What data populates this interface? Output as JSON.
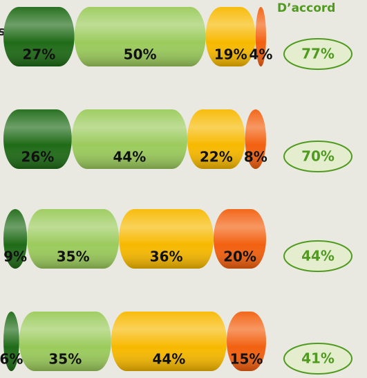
{
  "chart_data": {
    "type": "bar",
    "orientation": "horizontal",
    "stacked": true,
    "categories": [
      "s",
      null,
      null,
      null
    ],
    "series": [
      {
        "color": "#1f6b17",
        "values": [
          27,
          26,
          9,
          6
        ],
        "value_labels": [
          "27%",
          "26%",
          "9%",
          "6%"
        ]
      },
      {
        "color": "#9bcb5c",
        "values": [
          50,
          44,
          35,
          35
        ],
        "value_labels": [
          "50%",
          "44%",
          "35%",
          "35%"
        ]
      },
      {
        "color": "#f7b900",
        "values": [
          19,
          22,
          36,
          44
        ],
        "value_labels": [
          "19%",
          "22%",
          "36%",
          "44%"
        ]
      },
      {
        "color": "#f2600f",
        "values": [
          4,
          8,
          20,
          15
        ],
        "value_labels": [
          "4%",
          "8%",
          "20%",
          "15%"
        ]
      }
    ],
    "agree": {
      "name": "D’accord",
      "color": "#4f9a1f",
      "values": [
        77,
        70,
        44,
        41
      ],
      "value_labels": [
        "77%",
        "70%",
        "44%",
        "41%"
      ]
    }
  }
}
